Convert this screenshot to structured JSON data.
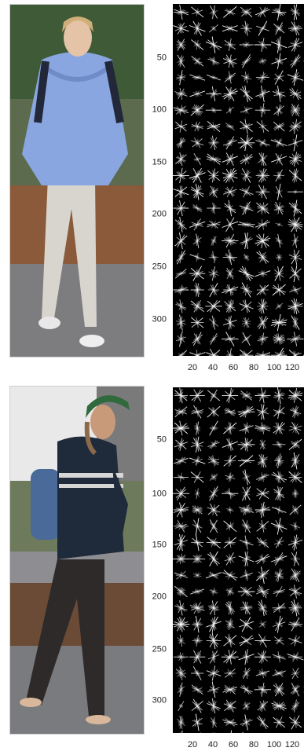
{
  "figures": [
    {
      "subject": "woman-blue-hoodie",
      "y_ticks": [
        "50",
        "100",
        "150",
        "200",
        "250",
        "300"
      ],
      "x_ticks": [
        "20",
        "40",
        "60",
        "80",
        "100",
        "120"
      ]
    },
    {
      "subject": "man-green-cap",
      "y_ticks": [
        "50",
        "100",
        "150",
        "200",
        "250",
        "300"
      ],
      "x_ticks": [
        "20",
        "40",
        "60",
        "80",
        "100",
        "120"
      ]
    }
  ],
  "colors": {
    "panel_bg": "#000000",
    "hog_stroke": "#ffffff",
    "hoodie": "#8aa6e0",
    "jacket": "#1f2a3a",
    "cap": "#2f6a3c"
  }
}
